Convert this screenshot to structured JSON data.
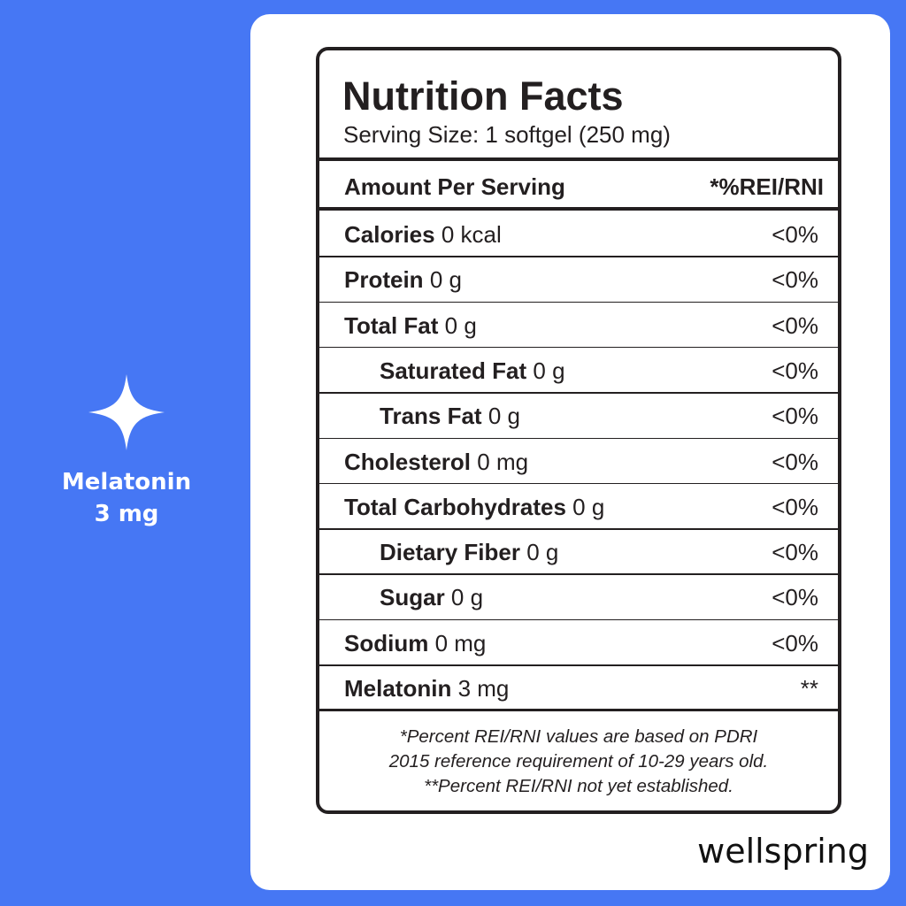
{
  "sidebar": {
    "product": "Melatonin",
    "dose": "3 mg"
  },
  "label": {
    "title": "Nutrition Facts",
    "serving_size": "Serving Size: 1 softgel (250 mg)",
    "header": {
      "left": "Amount Per Serving",
      "right": "*%REI/RNI"
    },
    "rows": [
      {
        "name": "Calories",
        "amount": "0 kcal",
        "percent": "<0%",
        "indent": false
      },
      {
        "name": "Protein",
        "amount": "0 g",
        "percent": "<0%",
        "indent": false
      },
      {
        "name": "Total Fat",
        "amount": "0 g",
        "percent": "<0%",
        "indent": false
      },
      {
        "name": "Saturated Fat",
        "amount": "0 g",
        "percent": "<0%",
        "indent": true
      },
      {
        "name": "Trans Fat",
        "amount": "0 g",
        "percent": "<0%",
        "indent": true
      },
      {
        "name": "Cholesterol",
        "amount": "0 mg",
        "percent": "<0%",
        "indent": false
      },
      {
        "name": "Total Carbohydrates",
        "amount": "0 g",
        "percent": "<0%",
        "indent": false
      },
      {
        "name": "Dietary Fiber",
        "amount": "0 g",
        "percent": "<0%",
        "indent": true
      },
      {
        "name": "Sugar",
        "amount": "0 g",
        "percent": "<0%",
        "indent": true
      },
      {
        "name": "Sodium",
        "amount": "0 mg",
        "percent": "<0%",
        "indent": false
      },
      {
        "name": "Melatonin",
        "amount": "3 mg",
        "percent": "**",
        "indent": false
      }
    ],
    "footnotes": [
      "*Percent REI/RNI values are based on PDRI",
      "2015 reference requirement of 10-29 years old.",
      "**Percent REI/RNI not yet established."
    ]
  },
  "brand": "wellspring"
}
